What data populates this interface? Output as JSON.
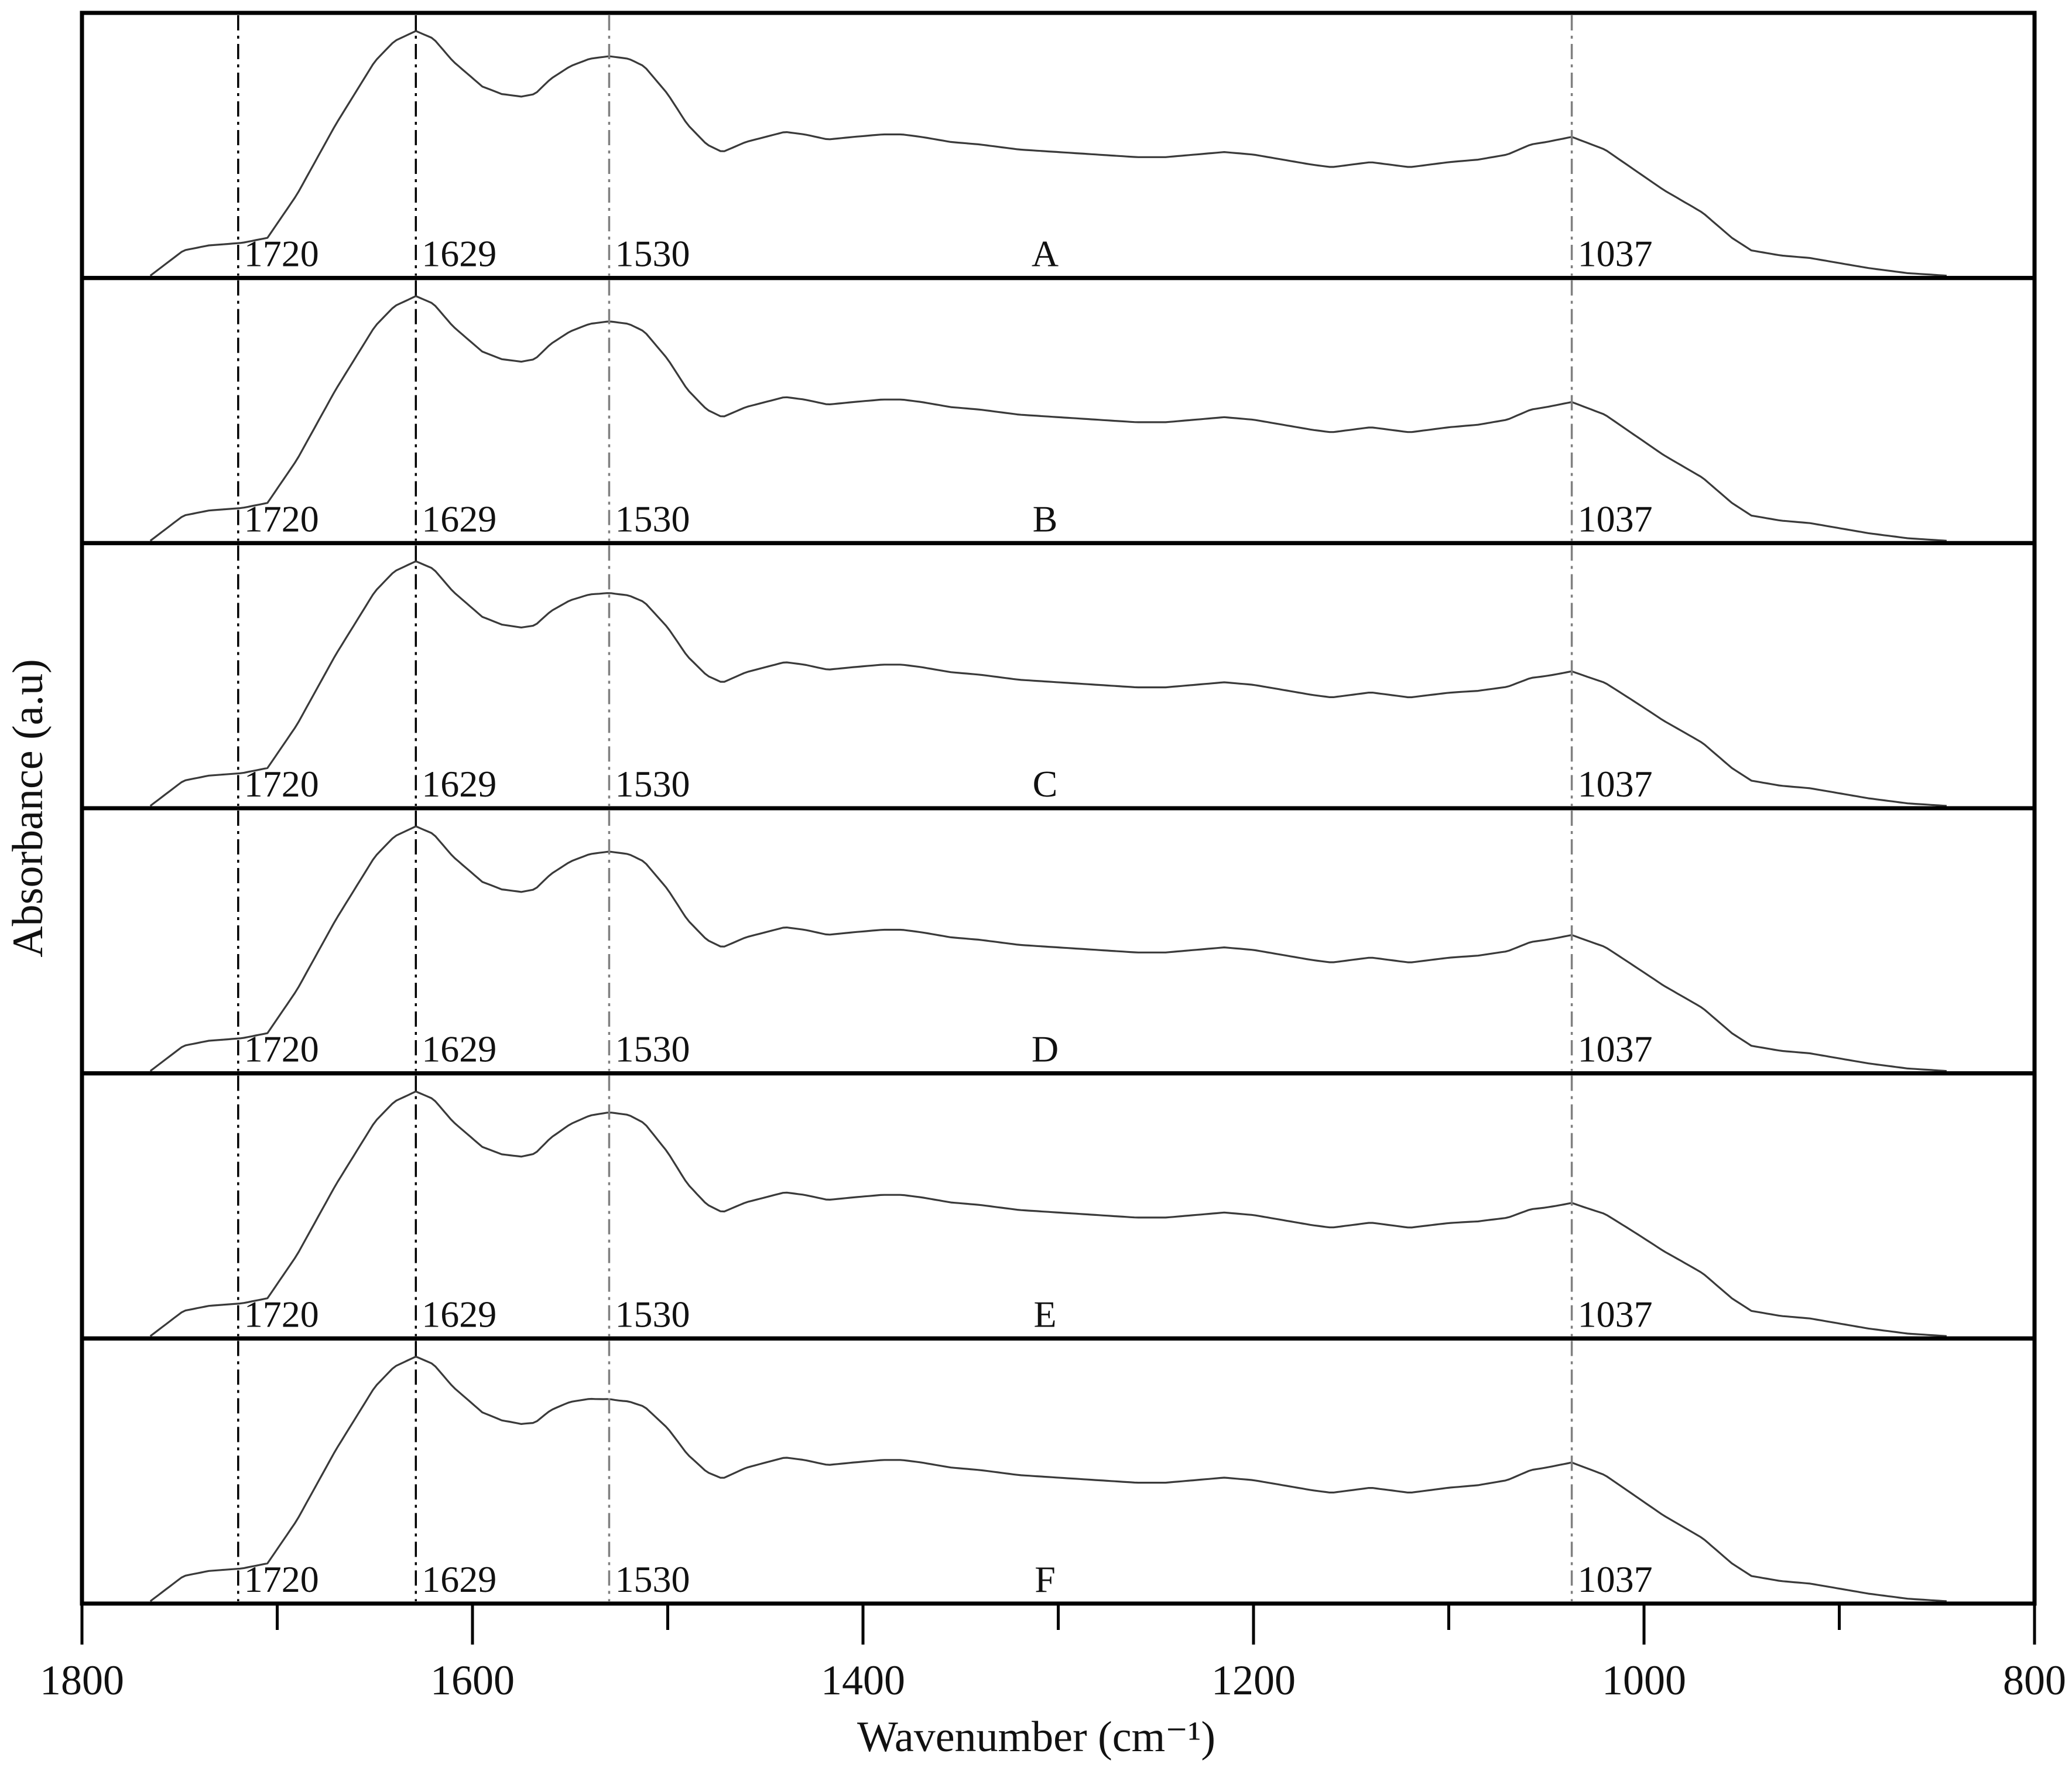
{
  "chart_data": {
    "type": "line",
    "title": "",
    "xlabel": "Wavenumber (cm⁻¹)",
    "ylabel": "Absorbance (a.u)",
    "xlim": [
      1800,
      800
    ],
    "x_reversed": true,
    "ylim": [
      0,
      1
    ],
    "x_ticks": [
      1800,
      1600,
      1400,
      1200,
      1000,
      800
    ],
    "x_minor_ticks": [
      1700,
      1500,
      1300,
      1100,
      900
    ],
    "y_tick_labels_shown": false,
    "grid": false,
    "layout": "stacked panels, one spectrum per panel",
    "marker_lines": [
      {
        "x": 1720,
        "label": "1720",
        "color": "#000000"
      },
      {
        "x": 1629,
        "label": "1629",
        "color": "#000000"
      },
      {
        "x": 1530,
        "label": "1530",
        "color": "#808080"
      },
      {
        "x": 1037,
        "label": "1037",
        "color": "#808080"
      }
    ],
    "series_colors": {
      "line": "#3a3a3a",
      "frame": "#000000"
    },
    "base_profile": {
      "x": [
        1765,
        1748,
        1735,
        1718,
        1705,
        1690,
        1670,
        1650,
        1640,
        1629,
        1620,
        1610,
        1595,
        1585,
        1575,
        1568,
        1560,
        1550,
        1540,
        1530,
        1520,
        1512,
        1500,
        1490,
        1480,
        1472,
        1460,
        1450,
        1440,
        1430,
        1418,
        1405,
        1390,
        1380,
        1370,
        1355,
        1340,
        1320,
        1300,
        1280,
        1260,
        1245,
        1230,
        1215,
        1200,
        1185,
        1170,
        1160,
        1150,
        1140,
        1130,
        1120,
        1110,
        1100,
        1085,
        1070,
        1058,
        1050,
        1037,
        1020,
        1005,
        990,
        970,
        955,
        945,
        930,
        915,
        900,
        885,
        865,
        845
      ],
      "y": [
        0.0,
        0.1,
        0.12,
        0.13,
        0.15,
        0.32,
        0.6,
        0.85,
        0.93,
        0.97,
        0.94,
        0.85,
        0.75,
        0.72,
        0.71,
        0.72,
        0.78,
        0.83,
        0.86,
        0.87,
        0.86,
        0.83,
        0.72,
        0.6,
        0.52,
        0.49,
        0.53,
        0.55,
        0.57,
        0.56,
        0.54,
        0.55,
        0.56,
        0.56,
        0.55,
        0.53,
        0.52,
        0.5,
        0.49,
        0.48,
        0.47,
        0.47,
        0.48,
        0.49,
        0.48,
        0.46,
        0.44,
        0.43,
        0.44,
        0.45,
        0.44,
        0.43,
        0.44,
        0.45,
        0.46,
        0.48,
        0.52,
        0.53,
        0.55,
        0.5,
        0.42,
        0.34,
        0.25,
        0.15,
        0.1,
        0.08,
        0.07,
        0.05,
        0.03,
        0.01,
        0.0
      ]
    },
    "series": [
      {
        "name": "A",
        "peak_1530_scale": 1.0,
        "peak_1037_scale": 1.0
      },
      {
        "name": "B",
        "peak_1530_scale": 1.0,
        "peak_1037_scale": 1.0
      },
      {
        "name": "C",
        "peak_1530_scale": 0.97,
        "peak_1037_scale": 0.97
      },
      {
        "name": "D",
        "peak_1530_scale": 1.0,
        "peak_1037_scale": 0.98
      },
      {
        "name": "E",
        "peak_1530_scale": 1.02,
        "peak_1037_scale": 0.96
      },
      {
        "name": "F",
        "peak_1530_scale": 0.92,
        "peak_1037_scale": 1.0
      }
    ]
  }
}
